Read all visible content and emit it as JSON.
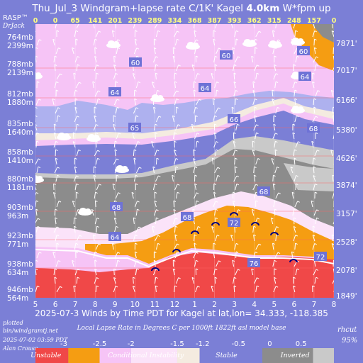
{
  "chart_data": {
    "type": "area",
    "title_prefix": "Thu_Jul_3 Windgram+lapse rate C/1K'  Kagel ",
    "title_bold": "4.0km",
    "title_suffix": "  W*fpm up",
    "credit_top": [
      "RASP™",
      "DrJack"
    ],
    "xlabel": "2025-07-3 Winds by Time PDT for Kagel at lat,lon= 34.333, -118.385",
    "x_ticks": [
      "5",
      "6",
      "7",
      "8",
      "9",
      "10",
      "11",
      "12",
      "1",
      "2",
      "3",
      "4",
      "5",
      "6",
      "7",
      "8"
    ],
    "w_values": [
      "0",
      "0",
      "65",
      "141",
      "201",
      "239",
      "289",
      "334",
      "368",
      "387",
      "393",
      "362",
      "315",
      "248",
      "157",
      "0"
    ],
    "left_axis": [
      {
        "mb": "764mb",
        "m": "2399m"
      },
      {
        "mb": "788mb",
        "m": "2139m"
      },
      {
        "mb": "812mb",
        "m": "1880m"
      },
      {
        "mb": "835mb",
        "m": "1640m"
      },
      {
        "mb": "858mb",
        "m": "1410m"
      },
      {
        "mb": "880mb",
        "m": "1181m"
      },
      {
        "mb": "903mb",
        "m": "963m"
      },
      {
        "mb": "923mb",
        "m": "771m"
      },
      {
        "mb": "938mb",
        "m": "634m"
      },
      {
        "mb": "946mb",
        "m": "564m"
      }
    ],
    "right_axis": [
      "7871'",
      "7017'",
      "6166'",
      "5380'",
      "4626'",
      "3874'",
      "3157'",
      "2528'",
      "2078'",
      "1849'"
    ],
    "speed_labels": [
      "60",
      "60",
      "60",
      "64",
      "64",
      "64",
      "65",
      "66",
      "68",
      "68",
      "68",
      "68",
      "64",
      "72",
      "76",
      "72"
    ],
    "legend_title": "Local Lapse Rate in Degrees C per 1000ft   1822ft asl model base",
    "legend_ticks": [
      "-3",
      "-2.5",
      "-2",
      "-1.5",
      "-1.2",
      "-0.5",
      "0",
      "0.5"
    ],
    "legend_categories": [
      "Unstable",
      "Conditional Instability",
      "Stable",
      "Inverted"
    ],
    "footer_left": [
      "plotted",
      "bin/windgramtj.net",
      "2025-07-02 03:59 PDT",
      "Alan Crouse"
    ],
    "footer_right": [
      "rhcut",
      "95%"
    ],
    "colors": {
      "background": "#7b7fd6",
      "unstable": "#f04848",
      "orange": "#f59d12",
      "pink": "#f6c4f6",
      "light_pink": "#fbe3f9",
      "cream": "#f4ebe0",
      "lavender": "#aeb1ef",
      "gray": "#8c8c8c",
      "light_gray": "#c9c9c9",
      "speed_box": "#6e72d6"
    }
  }
}
